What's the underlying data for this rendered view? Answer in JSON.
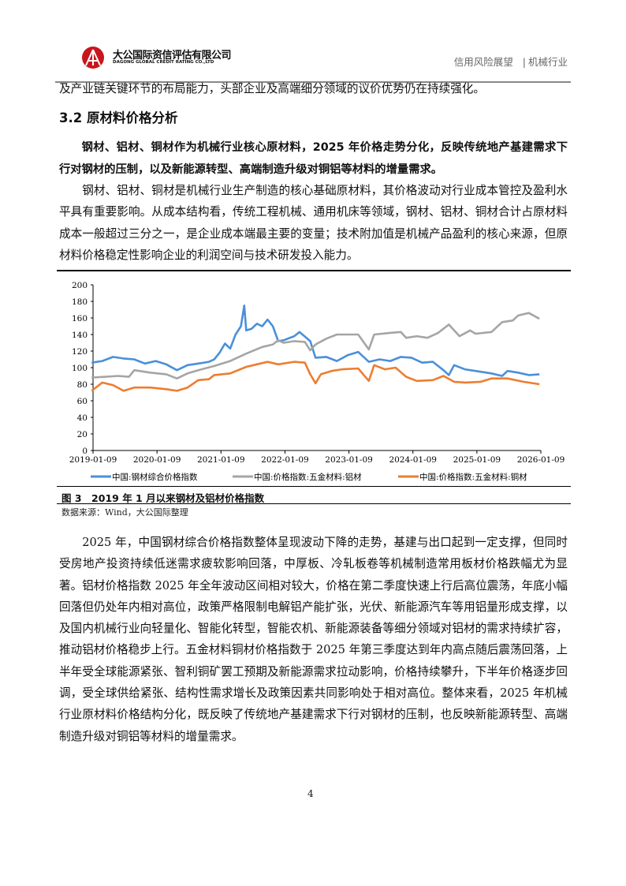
{
  "header": {
    "logo_cn": "大公国际资信评估有限公司",
    "logo_en": "DAGONG GLOBAL CREDIT RATING CO.,LTD",
    "report_type": "信用风险展望",
    "separator": "|",
    "industry": "机械行业"
  },
  "content": {
    "continuation": "及产业链关键环节的布局能力，头部企业及高端细分领域的议价优势仍在持续强化。",
    "section_title": "3.2 原材料价格分析",
    "lead_paragraph": "钢材、铝材、铜材作为机械行业核心原材料，2025 年价格走势分化，反映传统地产基建需求下行对钢材的压制，以及新能源转型、高端制造升级对铜铝等材料的增量需求。",
    "paragraph_1": "钢材、铝材、铜材是机械行业生产制造的核心基础原材料，其价格波动对行业成本管控及盈利水平具有重要影响。从成本结构看，传统工程机械、通用机床等领域，钢材、铝材、铜材合计占原材料成本一般超过三分之一，是企业成本端最主要的变量；技术附加值是机械产品盈利的核心来源，但原材料价格稳定性影响企业的利润空间与技术研发投入能力。",
    "paragraph_2": "2025 年，中国钢材综合价格指数整体呈现波动下降的走势，基建与出口起到一定支撑，但同时受房地产投资持续低迷需求疲软影响回落，中厚板、冷轧板卷等机械制造常用板材价格跌幅尤为显著。铝材价格指数 2025 年全年波动区间相对较大，价格在第二季度快速上行后高位震荡，年底小幅回落但仍处年内相对高位，政策严格限制电解铝产能扩张，光伏、新能源汽车等用铝量形成支撑，以及国内机械行业向轻量化、智能化转型，智能农机、新能源装备等细分领域对铝材的需求持续扩容，推动铝材价格稳步上行。五金材料铜材价格指数于 2025 年第三季度达到年内高点随后震荡回落，上半年受全球能源紧张、智利铜矿罢工预期及新能源需求拉动影响，价格持续攀升，下半年价格逐步回调，受全球供给紧张、结构性需求增长及政策因素共同影响处于相对高位。整体来看，2025 年机械行业原材料价格结构分化，既反映了传统地产基建需求下行对钢材的压制，也反映新能源转型、高端制造升级对铜铝等材料的增量需求。"
  },
  "figure": {
    "caption": "图 3　2019 年 1 月以来钢材及铝材价格指数",
    "source": "数据来源：Wind，大公国际整理"
  },
  "chart_data": {
    "type": "line",
    "ylim": [
      0,
      200
    ],
    "yticks": [
      "0",
      "20",
      "40",
      "60",
      "80",
      "100",
      "120",
      "140",
      "160",
      "180",
      "200"
    ],
    "xlim": [
      "2019-01-09",
      "2026-01-09"
    ],
    "xticks": [
      "2019-01-09",
      "2020-01-09",
      "2021-01-09",
      "2022-01-09",
      "2023-01-09",
      "2024-01-09",
      "2025-01-09",
      "2026-01-09"
    ],
    "grid": false,
    "legend_position": "bottom",
    "series": [
      {
        "name": "中国:钢材综合价格指数",
        "color": "#4a90d9",
        "points": [
          [
            "2019-01",
            106
          ],
          [
            "2019-03",
            108
          ],
          [
            "2019-05",
            113
          ],
          [
            "2019-07",
            111
          ],
          [
            "2019-09",
            110
          ],
          [
            "2019-11",
            105
          ],
          [
            "2020-01",
            108
          ],
          [
            "2020-03",
            104
          ],
          [
            "2020-05",
            97
          ],
          [
            "2020-07",
            103
          ],
          [
            "2020-09",
            105
          ],
          [
            "2020-11",
            107
          ],
          [
            "2020-12",
            110
          ],
          [
            "2021-01",
            118
          ],
          [
            "2021-02",
            129
          ],
          [
            "2021-03",
            123
          ],
          [
            "2021-04",
            140
          ],
          [
            "2021-05",
            150
          ],
          [
            "2021-05-20",
            175
          ],
          [
            "2021-06",
            145
          ],
          [
            "2021-07",
            147
          ],
          [
            "2021-08",
            153
          ],
          [
            "2021-09",
            150
          ],
          [
            "2021-10",
            158
          ],
          [
            "2021-11",
            150
          ],
          [
            "2021-12",
            132
          ],
          [
            "2022-01",
            133
          ],
          [
            "2022-03",
            138
          ],
          [
            "2022-04",
            143
          ],
          [
            "2022-06",
            132
          ],
          [
            "2022-07",
            112
          ],
          [
            "2022-09",
            113
          ],
          [
            "2022-11",
            108
          ],
          [
            "2023-01",
            115
          ],
          [
            "2023-03",
            119
          ],
          [
            "2023-05",
            107
          ],
          [
            "2023-07",
            110
          ],
          [
            "2023-09",
            108
          ],
          [
            "2023-11",
            113
          ],
          [
            "2024-01",
            112
          ],
          [
            "2024-03",
            106
          ],
          [
            "2024-05",
            107
          ],
          [
            "2024-07",
            97
          ],
          [
            "2024-08",
            91
          ],
          [
            "2024-09",
            103
          ],
          [
            "2024-11",
            98
          ],
          [
            "2025-01",
            96
          ],
          [
            "2025-04",
            93
          ],
          [
            "2025-06",
            90
          ],
          [
            "2025-07",
            96
          ],
          [
            "2025-09",
            94
          ],
          [
            "2025-11",
            91
          ],
          [
            "2026-01",
            92
          ]
        ]
      },
      {
        "name": "中国:价格指数:五金材料:铝材",
        "color": "#a5a5a5",
        "points": [
          [
            "2019-01",
            88
          ],
          [
            "2019-06",
            90
          ],
          [
            "2019-08",
            89
          ],
          [
            "2019-09",
            97
          ],
          [
            "2019-12",
            94
          ],
          [
            "2020-03",
            92
          ],
          [
            "2020-05",
            87
          ],
          [
            "2020-07",
            93
          ],
          [
            "2020-09",
            97
          ],
          [
            "2020-12",
            102
          ],
          [
            "2021-03",
            108
          ],
          [
            "2021-06",
            117
          ],
          [
            "2021-09",
            125
          ],
          [
            "2021-11",
            128
          ],
          [
            "2021-12",
            133
          ],
          [
            "2022-01",
            130
          ],
          [
            "2022-03",
            132
          ],
          [
            "2022-05",
            131
          ],
          [
            "2022-06",
            121
          ],
          [
            "2022-07",
            128
          ],
          [
            "2022-09",
            135
          ],
          [
            "2022-11",
            140
          ],
          [
            "2023-01",
            140
          ],
          [
            "2023-03",
            140
          ],
          [
            "2023-05",
            122
          ],
          [
            "2023-06",
            140
          ],
          [
            "2023-09",
            142
          ],
          [
            "2023-11",
            143
          ],
          [
            "2023-12",
            136
          ],
          [
            "2024-02",
            138
          ],
          [
            "2024-04",
            136
          ],
          [
            "2024-06",
            142
          ],
          [
            "2024-08",
            152
          ],
          [
            "2024-10",
            138
          ],
          [
            "2024-12",
            145
          ],
          [
            "2025-01",
            141
          ],
          [
            "2025-04",
            143
          ],
          [
            "2025-06",
            155
          ],
          [
            "2025-08",
            157
          ],
          [
            "2025-09",
            163
          ],
          [
            "2025-11",
            166
          ],
          [
            "2026-01",
            159
          ]
        ]
      },
      {
        "name": "中国:价格指数:五金材料:铜材",
        "color": "#ed7d31",
        "points": [
          [
            "2019-01",
            72
          ],
          [
            "2019-03",
            82
          ],
          [
            "2019-05",
            79
          ],
          [
            "2019-07",
            72
          ],
          [
            "2019-09",
            76
          ],
          [
            "2019-12",
            76
          ],
          [
            "2020-03",
            74
          ],
          [
            "2020-05",
            72
          ],
          [
            "2020-07",
            76
          ],
          [
            "2020-09",
            85
          ],
          [
            "2020-11",
            86
          ],
          [
            "2020-12",
            91
          ],
          [
            "2021-03",
            93
          ],
          [
            "2021-06",
            101
          ],
          [
            "2021-08",
            104
          ],
          [
            "2021-10",
            107
          ],
          [
            "2021-12",
            104
          ],
          [
            "2022-03",
            107
          ],
          [
            "2022-05",
            106
          ],
          [
            "2022-06",
            92
          ],
          [
            "2022-07",
            81
          ],
          [
            "2022-08",
            92
          ],
          [
            "2022-10",
            96
          ],
          [
            "2022-12",
            98
          ],
          [
            "2023-03",
            99
          ],
          [
            "2023-05",
            84
          ],
          [
            "2023-06",
            103
          ],
          [
            "2023-08",
            98
          ],
          [
            "2023-10",
            100
          ],
          [
            "2023-12",
            89
          ],
          [
            "2024-02",
            84
          ],
          [
            "2024-05",
            85
          ],
          [
            "2024-07",
            90
          ],
          [
            "2024-09",
            83
          ],
          [
            "2024-11",
            82
          ],
          [
            "2025-02",
            83
          ],
          [
            "2025-04",
            87
          ],
          [
            "2025-07",
            87
          ],
          [
            "2025-10",
            83
          ],
          [
            "2026-01",
            80
          ]
        ]
      }
    ]
  },
  "footer": {
    "page_number": "4"
  },
  "colors": {
    "header_rule": "#888888",
    "logo_red": "#c8161d"
  }
}
